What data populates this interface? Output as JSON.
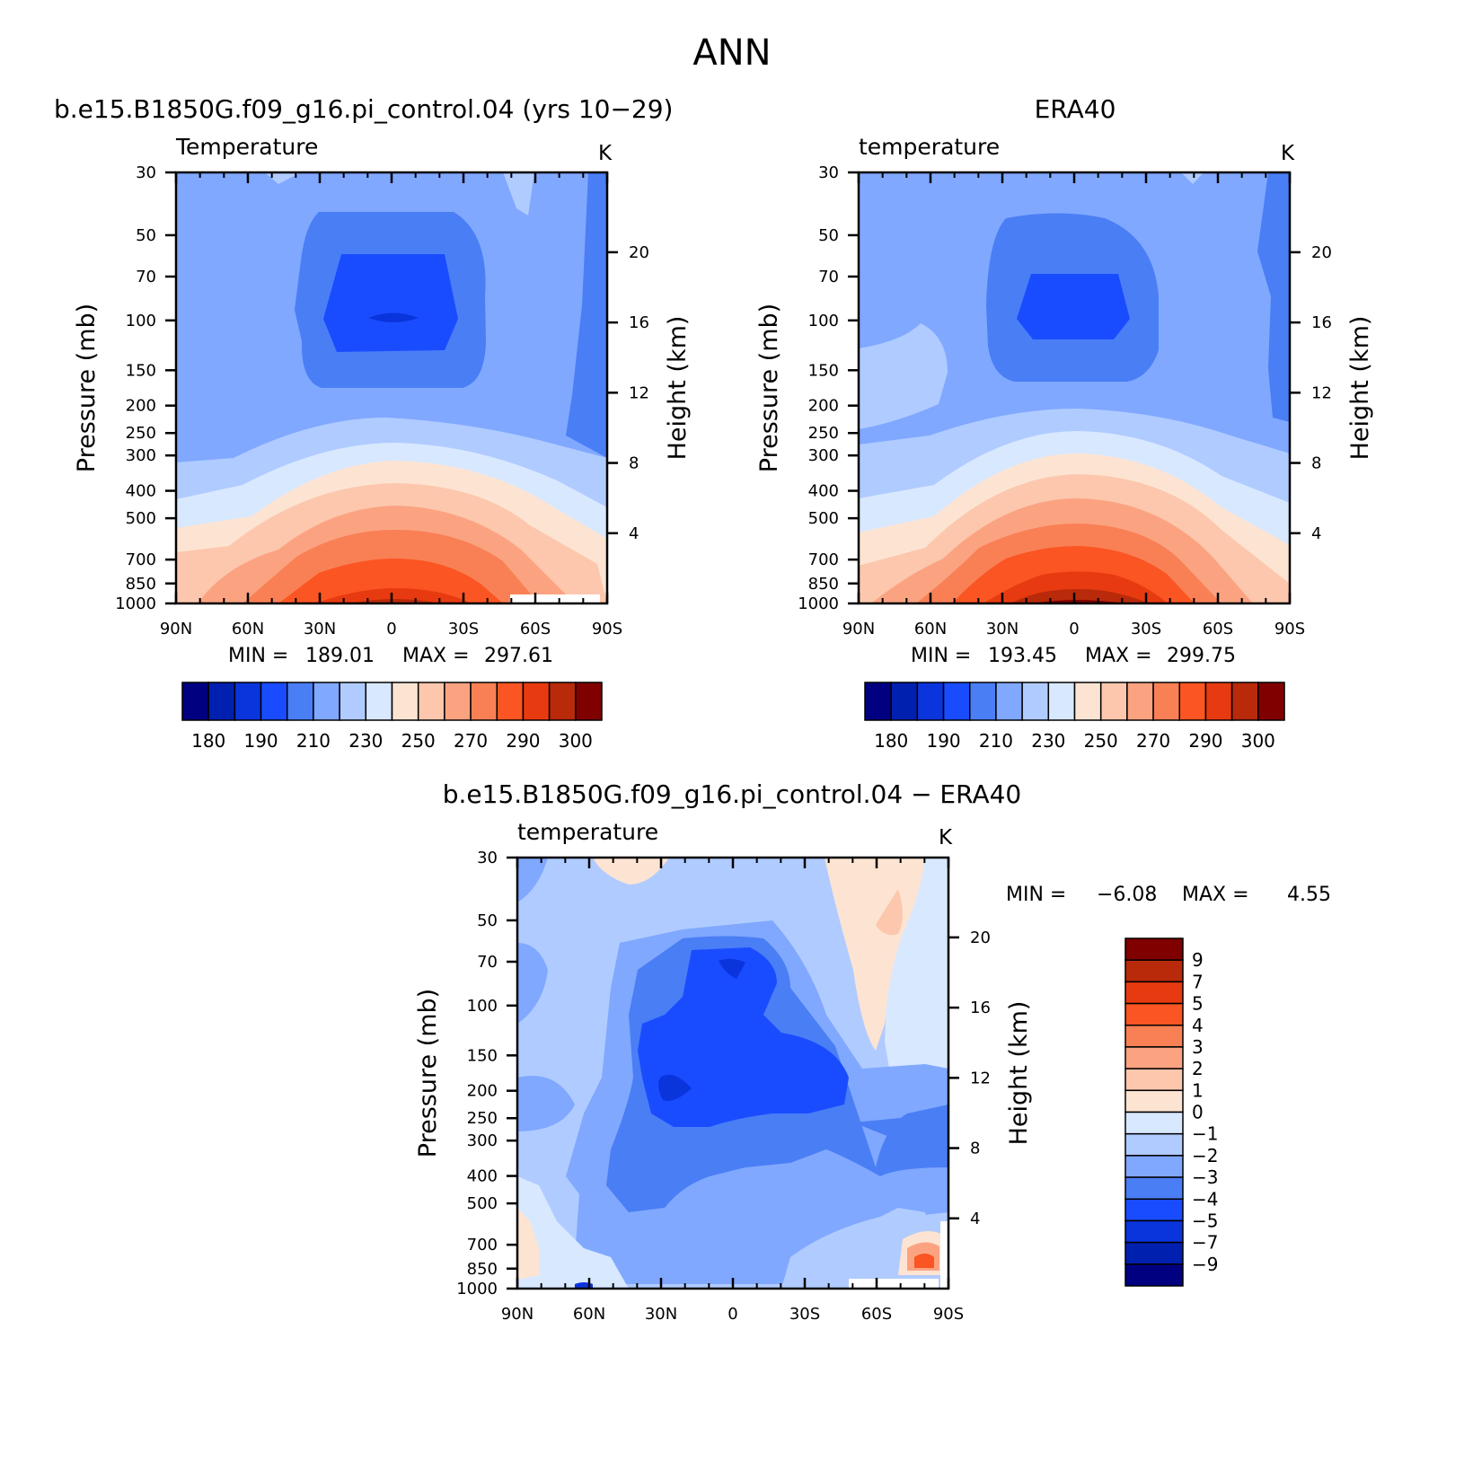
{
  "figure_title": "ANN",
  "colors": {
    "temperature_scale": [
      "#000080",
      "#0020b0",
      "#0a34dc",
      "#1a4cff",
      "#4a7ef5",
      "#80a8ff",
      "#b0cbff",
      "#d8e8ff",
      "#fde4d2",
      "#fcc7ad",
      "#fba381",
      "#f98055",
      "#fa5522",
      "#e83a10",
      "#b82a0a",
      "#800000"
    ],
    "difference_scale": [
      "#000080",
      "#0020b0",
      "#0a34dc",
      "#1a4cff",
      "#4a7ef5",
      "#80a8ff",
      "#b0cbff",
      "#d8e8ff",
      "#fde4d2",
      "#fcc7ad",
      "#fba381",
      "#f98055",
      "#fa5522",
      "#e83a10",
      "#b82a0a",
      "#800000"
    ]
  },
  "chart_data": [
    {
      "type": "heatmap",
      "title": "b.e15.B1850G.f09_g16.pi_control.04 (yrs 10−29)",
      "variable_label": "Temperature",
      "units": "K",
      "ylabel": "Pressure (mb)",
      "y2label": "Height (km)",
      "x_ticks": [
        "90N",
        "60N",
        "30N",
        "0",
        "30S",
        "60S",
        "90S"
      ],
      "y_ticks": [
        "30",
        "50",
        "70",
        "100",
        "150",
        "200",
        "250",
        "300",
        "400",
        "500",
        "700",
        "850",
        "1000"
      ],
      "y2_ticks": [
        "20",
        "16",
        "12",
        "8",
        "4"
      ],
      "min_label": "MIN =",
      "min_value": "189.01",
      "max_label": "MAX =",
      "max_value": "297.61",
      "colorbar_labels": [
        "180",
        "190",
        "210",
        "230",
        "250",
        "270",
        "290",
        "300"
      ]
    },
    {
      "type": "heatmap",
      "title": "ERA40",
      "variable_label": "temperature",
      "units": "K",
      "ylabel": "Pressure (mb)",
      "y2label": "Height (km)",
      "x_ticks": [
        "90N",
        "60N",
        "30N",
        "0",
        "30S",
        "60S",
        "90S"
      ],
      "y_ticks": [
        "30",
        "50",
        "70",
        "100",
        "150",
        "200",
        "250",
        "300",
        "400",
        "500",
        "700",
        "850",
        "1000"
      ],
      "y2_ticks": [
        "20",
        "16",
        "12",
        "8",
        "4"
      ],
      "min_label": "MIN =",
      "min_value": "193.45",
      "max_label": "MAX =",
      "max_value": "299.75",
      "colorbar_labels": [
        "180",
        "190",
        "210",
        "230",
        "250",
        "270",
        "290",
        "300"
      ]
    },
    {
      "type": "heatmap",
      "title": "b.e15.B1850G.f09_g16.pi_control.04 − ERA40",
      "variable_label": "temperature",
      "units": "K",
      "ylabel": "Pressure (mb)",
      "y2label": "Height (km)",
      "x_ticks": [
        "90N",
        "60N",
        "30N",
        "0",
        "30S",
        "60S",
        "90S"
      ],
      "y_ticks": [
        "30",
        "50",
        "70",
        "100",
        "150",
        "200",
        "250",
        "300",
        "400",
        "500",
        "700",
        "850",
        "1000"
      ],
      "y2_ticks": [
        "20",
        "16",
        "12",
        "8",
        "4"
      ],
      "min_label": "MIN =",
      "min_value": "−6.08",
      "max_label": "MAX =",
      "max_value": "4.55",
      "colorbar_labels": [
        "9",
        "7",
        "5",
        "4",
        "3",
        "2",
        "1",
        "0",
        "−1",
        "−2",
        "−3",
        "−4",
        "−5",
        "−7",
        "−9"
      ]
    }
  ]
}
